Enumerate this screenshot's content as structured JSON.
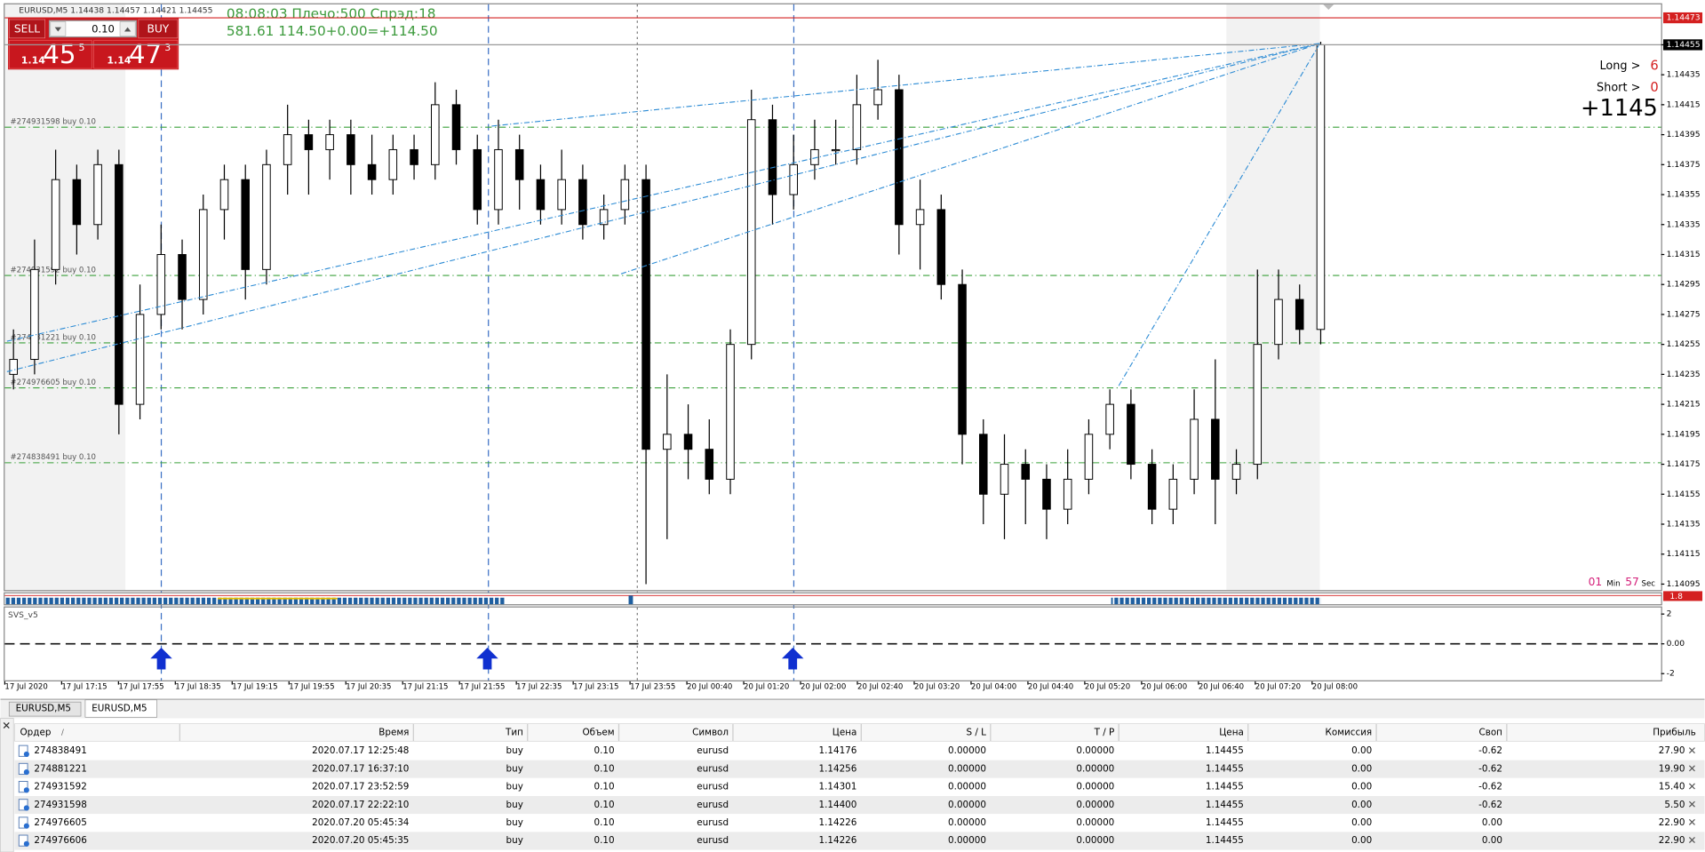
{
  "header": {
    "symbol_info": "EURUSD,M5  1.14438 1.14457 1.14421 1.14455",
    "status_line1": "08:08:03 Плечо:500 Спрэд:18",
    "status_line2": "581.61     114.50+0.00=+114.50"
  },
  "trade_panel": {
    "sell": "SELL",
    "buy": "BUY",
    "lot": "0.10",
    "sell_price": {
      "prefix": "1.14",
      "big": "45",
      "sup": "5"
    },
    "buy_price": {
      "prefix": "1.14",
      "big": "47",
      "sup": "3"
    }
  },
  "info_panel": {
    "long_label": "Long >",
    "long_value": "6",
    "short_label": "Short >",
    "short_value": "0",
    "total": "+1145",
    "timer": {
      "min": "01",
      "min_label": "Min",
      "sec": "57",
      "sec_label": "Sec"
    }
  },
  "chart_data": {
    "type": "candlestick",
    "ylim": [
      1.14091,
      1.14482
    ],
    "yticks": [
      1.14455,
      1.14435,
      1.14415,
      1.14395,
      1.14375,
      1.14355,
      1.14335,
      1.14315,
      1.14295,
      1.14275,
      1.14255,
      1.14235,
      1.14215,
      1.14195,
      1.14175,
      1.14155,
      1.14135,
      1.14115,
      1.14095
    ],
    "alert_level": 1.14473,
    "bid": 1.14455,
    "x_labels": [
      "17 Jul 2020",
      "17 Jul 17:15",
      "17 Jul 17:55",
      "17 Jul 18:35",
      "17 Jul 19:15",
      "17 Jul 19:55",
      "17 Jul 20:35",
      "17 Jul 21:15",
      "17 Jul 21:55",
      "17 Jul 22:35",
      "17 Jul 23:15",
      "17 Jul 23:55",
      "20 Jul 00:40",
      "20 Jul 01:20",
      "20 Jul 02:00",
      "20 Jul 02:40",
      "20 Jul 03:20",
      "20 Jul 04:00",
      "20 Jul 04:40",
      "20 Jul 05:20",
      "20 Jul 06:00",
      "20 Jul 06:40",
      "20 Jul 07:20",
      "20 Jul 08:00"
    ],
    "up_color": "#ffffff",
    "down_color": "#000000",
    "order_lines": [
      {
        "label": "#274931598 buy 0.10",
        "price": 1.144
      },
      {
        "label": "#274931592 buy 0.10",
        "price": 1.14301
      },
      {
        "label": "#274881221 buy 0.10",
        "price": 1.14256
      },
      {
        "label": "#274976605 buy 0.10",
        "price": 1.14226
      },
      {
        "label": "#274838491 buy 0.10",
        "price": 1.14176
      }
    ],
    "ohlc": [
      [
        1.14235,
        1.14265,
        1.14225,
        1.14245
      ],
      [
        1.14245,
        1.14325,
        1.14235,
        1.14305
      ],
      [
        1.14305,
        1.14385,
        1.14295,
        1.14365
      ],
      [
        1.14365,
        1.14375,
        1.14315,
        1.14335
      ],
      [
        1.14335,
        1.14385,
        1.14325,
        1.14375
      ],
      [
        1.14375,
        1.14385,
        1.14195,
        1.14215
      ],
      [
        1.14215,
        1.14295,
        1.14205,
        1.14275
      ],
      [
        1.14275,
        1.14335,
        1.14265,
        1.14315
      ],
      [
        1.14315,
        1.14325,
        1.14265,
        1.14285
      ],
      [
        1.14285,
        1.14355,
        1.14275,
        1.14345
      ],
      [
        1.14345,
        1.14375,
        1.14325,
        1.14365
      ],
      [
        1.14365,
        1.14375,
        1.14285,
        1.14305
      ],
      [
        1.14305,
        1.14385,
        1.14295,
        1.14375
      ],
      [
        1.14375,
        1.14415,
        1.14355,
        1.14395
      ],
      [
        1.14395,
        1.14405,
        1.14355,
        1.14385
      ],
      [
        1.14385,
        1.14405,
        1.14365,
        1.14395
      ],
      [
        1.14395,
        1.14405,
        1.14355,
        1.14375
      ],
      [
        1.14375,
        1.14395,
        1.14355,
        1.14365
      ],
      [
        1.14365,
        1.14395,
        1.14355,
        1.14385
      ],
      [
        1.14385,
        1.14395,
        1.14365,
        1.14375
      ],
      [
        1.14375,
        1.1443,
        1.14365,
        1.14415
      ],
      [
        1.14415,
        1.14425,
        1.14375,
        1.14385
      ],
      [
        1.14385,
        1.14395,
        1.14335,
        1.14345
      ],
      [
        1.14345,
        1.14405,
        1.14335,
        1.14385
      ],
      [
        1.14385,
        1.14395,
        1.14345,
        1.14365
      ],
      [
        1.14365,
        1.14375,
        1.14335,
        1.14345
      ],
      [
        1.14345,
        1.14385,
        1.14335,
        1.14365
      ],
      [
        1.14365,
        1.14375,
        1.14325,
        1.14335
      ],
      [
        1.14335,
        1.14355,
        1.14325,
        1.14345
      ],
      [
        1.14345,
        1.14375,
        1.14335,
        1.14365
      ],
      [
        1.14365,
        1.14375,
        1.14095,
        1.14185
      ],
      [
        1.14185,
        1.14235,
        1.14125,
        1.14195
      ],
      [
        1.14195,
        1.14215,
        1.14165,
        1.14185
      ],
      [
        1.14185,
        1.14205,
        1.14155,
        1.14165
      ],
      [
        1.14165,
        1.14265,
        1.14155,
        1.14255
      ],
      [
        1.14255,
        1.14425,
        1.14245,
        1.14405
      ],
      [
        1.14405,
        1.14415,
        1.14335,
        1.14355
      ],
      [
        1.14355,
        1.14395,
        1.14345,
        1.14375
      ],
      [
        1.14375,
        1.14405,
        1.14365,
        1.14385
      ],
      [
        1.14385,
        1.14405,
        1.14375,
        1.14385
      ],
      [
        1.14385,
        1.14435,
        1.14375,
        1.14415
      ],
      [
        1.14415,
        1.14445,
        1.14405,
        1.14425
      ],
      [
        1.14425,
        1.14435,
        1.14315,
        1.14335
      ],
      [
        1.14335,
        1.14365,
        1.14305,
        1.14345
      ],
      [
        1.14345,
        1.14355,
        1.14285,
        1.14295
      ],
      [
        1.14295,
        1.14305,
        1.14175,
        1.14195
      ],
      [
        1.14195,
        1.14205,
        1.14135,
        1.14155
      ],
      [
        1.14155,
        1.14195,
        1.14125,
        1.14175
      ],
      [
        1.14175,
        1.14185,
        1.14135,
        1.14165
      ],
      [
        1.14165,
        1.14175,
        1.14125,
        1.14145
      ],
      [
        1.14145,
        1.14185,
        1.14135,
        1.14165
      ],
      [
        1.14165,
        1.14205,
        1.14155,
        1.14195
      ],
      [
        1.14195,
        1.14225,
        1.14185,
        1.14215
      ],
      [
        1.14215,
        1.14225,
        1.14165,
        1.14175
      ],
      [
        1.14175,
        1.14185,
        1.14135,
        1.14145
      ],
      [
        1.14145,
        1.14175,
        1.14135,
        1.14165
      ],
      [
        1.14165,
        1.14225,
        1.14155,
        1.14205
      ],
      [
        1.14205,
        1.14245,
        1.14135,
        1.14165
      ],
      [
        1.14165,
        1.14185,
        1.14155,
        1.14175
      ],
      [
        1.14175,
        1.14305,
        1.14165,
        1.14255
      ],
      [
        1.14255,
        1.14305,
        1.14245,
        1.14285
      ],
      [
        1.14285,
        1.14295,
        1.14255,
        1.14265
      ],
      [
        1.14265,
        1.14457,
        1.14255,
        1.14455
      ]
    ]
  },
  "indicator": {
    "name": "SVS_v5",
    "strip_label": "1.8",
    "ylim": [
      -2.52,
      2.44
    ],
    "yticks": [
      2,
      {
        "value": 0,
        "label": "0.00"
      },
      -2
    ]
  },
  "tabs": [
    "EURUSD,M5",
    "EURUSD,M5"
  ],
  "table": {
    "headers": [
      "Ордер",
      "Время",
      "Тип",
      "Объем",
      "Символ",
      "Цена",
      "S / L",
      "T / P",
      "Цена",
      "Комиссия",
      "Своп",
      "Прибыль"
    ],
    "sort_mark": "/",
    "rows": [
      [
        "274838491",
        "2020.07.17 12:25:48",
        "buy",
        "0.10",
        "eurusd",
        "1.14176",
        "0.00000",
        "0.00000",
        "1.14455",
        "0.00",
        "-0.62",
        "27.90"
      ],
      [
        "274881221",
        "2020.07.17 16:37:10",
        "buy",
        "0.10",
        "eurusd",
        "1.14256",
        "0.00000",
        "0.00000",
        "1.14455",
        "0.00",
        "-0.62",
        "19.90"
      ],
      [
        "274931592",
        "2020.07.17 23:52:59",
        "buy",
        "0.10",
        "eurusd",
        "1.14301",
        "0.00000",
        "0.00000",
        "1.14455",
        "0.00",
        "-0.62",
        "15.40"
      ],
      [
        "274931598",
        "2020.07.17 22:22:10",
        "buy",
        "0.10",
        "eurusd",
        "1.14400",
        "0.00000",
        "0.00000",
        "1.14455",
        "0.00",
        "-0.62",
        "5.50"
      ],
      [
        "274976605",
        "2020.07.20 05:45:34",
        "buy",
        "0.10",
        "eurusd",
        "1.14226",
        "0.00000",
        "0.00000",
        "1.14455",
        "0.00",
        "0.00",
        "22.90"
      ],
      [
        "274976606",
        "2020.07.20 05:45:35",
        "buy",
        "0.10",
        "eurusd",
        "1.14226",
        "0.00000",
        "0.00000",
        "1.14455",
        "0.00",
        "0.00",
        "22.90"
      ]
    ]
  }
}
